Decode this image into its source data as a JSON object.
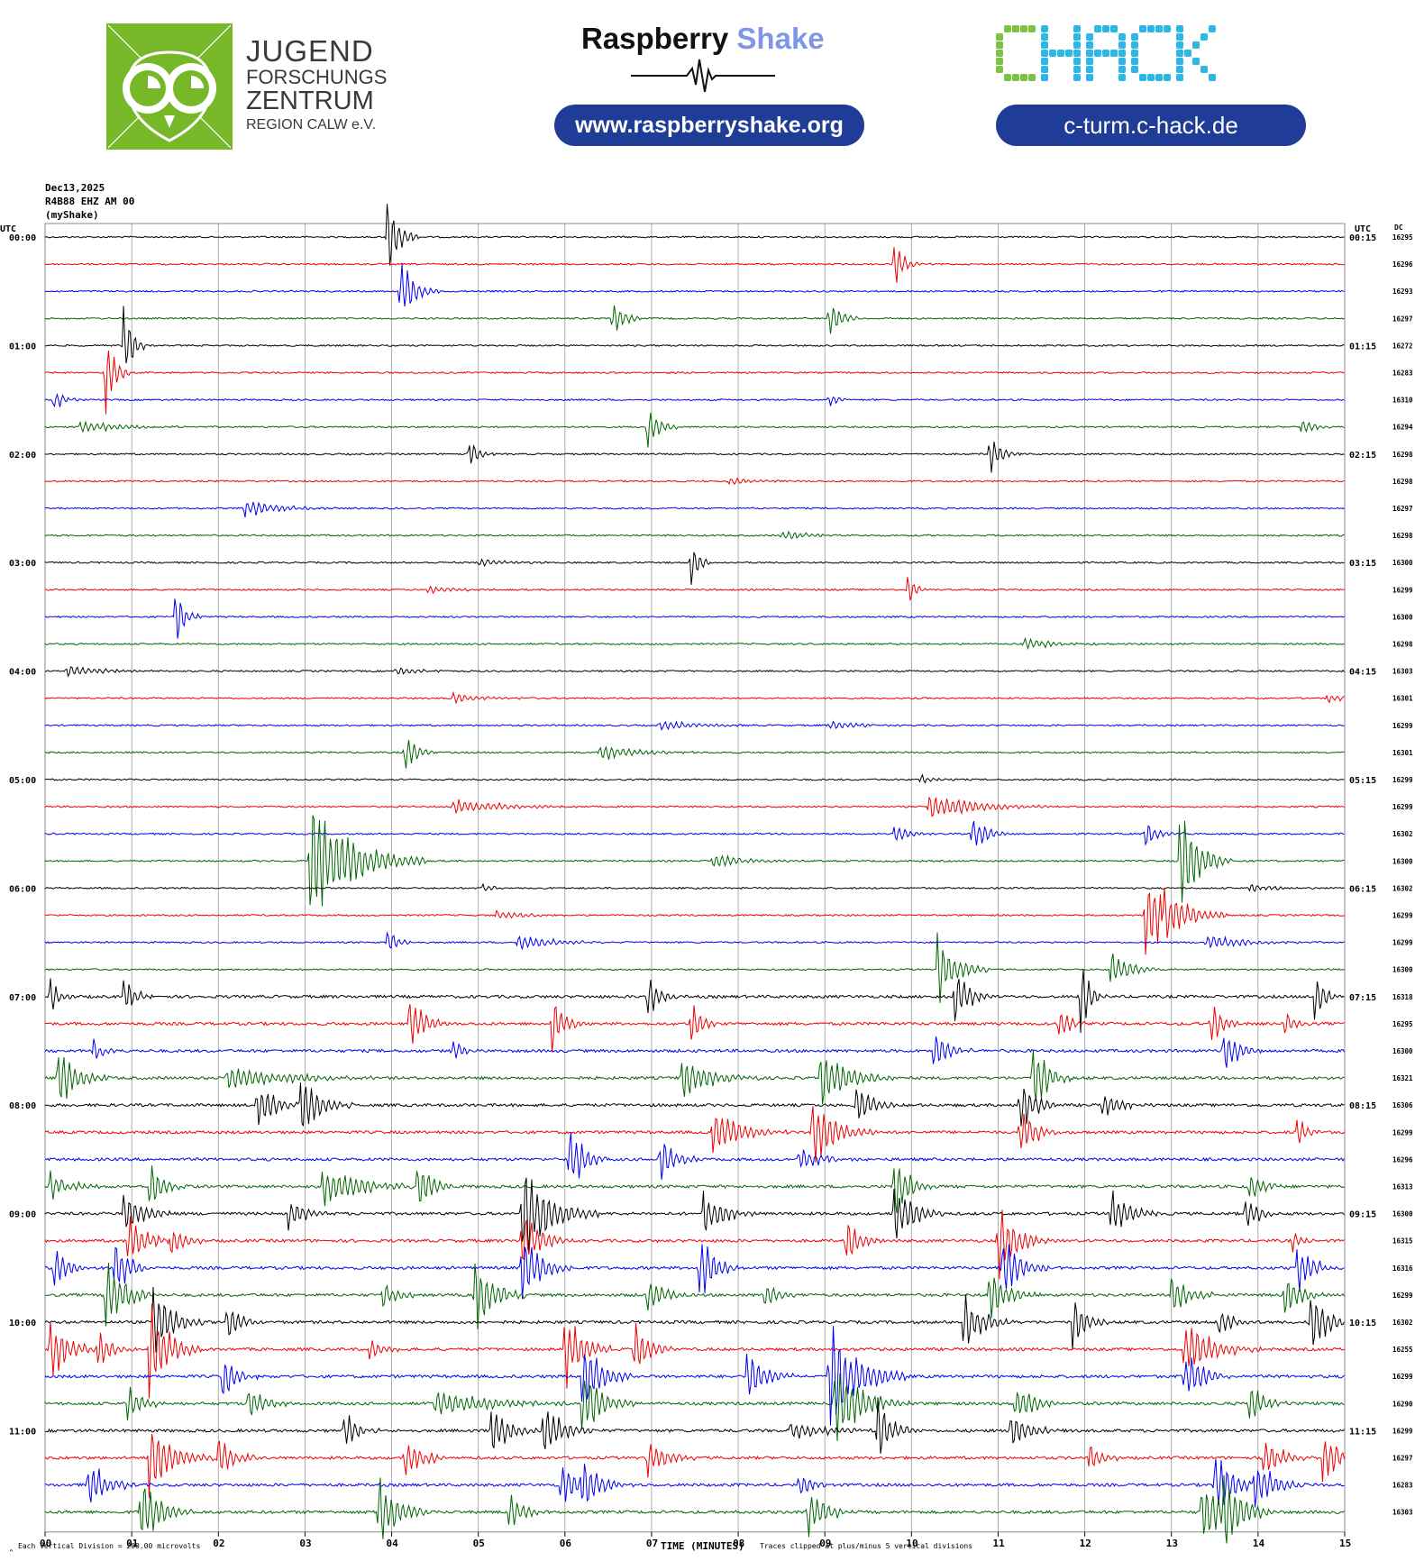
{
  "banner": {
    "jfz_lines": [
      "JUGEND",
      "FORSCHUNGS",
      "ZENTRUM",
      "REGION CALW e.V."
    ],
    "rs_title_a": "Raspberry",
    "rs_title_b": "Shake",
    "rs_url": "www.raspberryshake.org",
    "chack_logo": "CHACK",
    "chack_url": "c-turm.c-hack.de",
    "colors": {
      "jfz_green": "#77b82a",
      "pill_blue": "#1f3c96",
      "shake_blue": "#7f95e6",
      "chack_green": "#7dc242",
      "chack_blue": "#2bb8e6"
    }
  },
  "header": {
    "date": "Dec13,2025",
    "station": "R4B88 EHZ AM 00",
    "source": "(myShake)",
    "utc_left": "UTC",
    "utc_right": "UTC",
    "dc_label": "DC"
  },
  "footer": {
    "division_note": "Each Vertical Division =  200.00 microvolts",
    "xlabel": "TIME (MINUTES)",
    "clip_note": "Traces clipped at plus/minus 5 vertical divisions",
    "corner_mark": "^"
  },
  "chart_data": {
    "type": "line",
    "title": "",
    "xlabel": "TIME (MINUTES)",
    "xlim": [
      0,
      15
    ],
    "x_ticks": [
      "00",
      "01",
      "02",
      "03",
      "04",
      "05",
      "06",
      "07",
      "08",
      "09",
      "10",
      "11",
      "12",
      "13",
      "14",
      "15"
    ],
    "grid": true,
    "trace_colors": [
      "#000000",
      "#ee0000",
      "#0000ee",
      "#006600"
    ],
    "left_hour_labels": [
      "00:00",
      "01:00",
      "02:00",
      "03:00",
      "04:00",
      "05:00",
      "06:00",
      "07:00",
      "08:00",
      "09:00",
      "10:00",
      "11:00"
    ],
    "right_hour_labels": [
      "00:15",
      "01:15",
      "02:15",
      "03:15",
      "04:15",
      "05:15",
      "06:15",
      "07:15",
      "08:15",
      "09:15",
      "10:15",
      "11:15"
    ],
    "dc_offsets": [
      "16295",
      "16296",
      "16293",
      "16297",
      "16272",
      "16283",
      "16310",
      "16294",
      "16298",
      "16298",
      "16297",
      "16298",
      "16300",
      "16299",
      "16300",
      "16298",
      "16303",
      "16301",
      "16299",
      "16301",
      "16299",
      "16299",
      "16302",
      "16300",
      "16302",
      "16299",
      "16299",
      "16300",
      "16318",
      "16295",
      "16300",
      "16321",
      "16306",
      "16299",
      "16296",
      "16313",
      "16300",
      "16315",
      "16316",
      "16299",
      "16302",
      "16255",
      "16299",
      "16290",
      "16299",
      "16297",
      "16283",
      "16303"
    ],
    "events": [
      {
        "row": 0,
        "t": 3.95,
        "amp": 1.8,
        "dur": 0.12
      },
      {
        "row": 1,
        "t": 9.8,
        "amp": 1.0,
        "dur": 0.1
      },
      {
        "row": 2,
        "t": 4.1,
        "amp": 1.4,
        "dur": 0.15
      },
      {
        "row": 3,
        "t": 6.55,
        "amp": 0.7,
        "dur": 0.12
      },
      {
        "row": 3,
        "t": 9.05,
        "amp": 0.8,
        "dur": 0.12
      },
      {
        "row": 4,
        "t": 0.9,
        "amp": 1.6,
        "dur": 0.1
      },
      {
        "row": 5,
        "t": 0.7,
        "amp": 1.6,
        "dur": 0.1
      },
      {
        "row": 6,
        "t": 0.1,
        "amp": 0.5,
        "dur": 0.1
      },
      {
        "row": 6,
        "t": 9.05,
        "amp": 0.3,
        "dur": 0.1
      },
      {
        "row": 7,
        "t": 0.4,
        "amp": 0.25,
        "dur": 0.4
      },
      {
        "row": 7,
        "t": 6.95,
        "amp": 1.0,
        "dur": 0.12
      },
      {
        "row": 7,
        "t": 14.5,
        "amp": 0.3,
        "dur": 0.15
      },
      {
        "row": 8,
        "t": 4.9,
        "amp": 0.6,
        "dur": 0.1
      },
      {
        "row": 8,
        "t": 10.9,
        "amp": 0.8,
        "dur": 0.12
      },
      {
        "row": 9,
        "t": 7.9,
        "amp": 0.2,
        "dur": 0.2
      },
      {
        "row": 10,
        "t": 2.3,
        "amp": 0.35,
        "dur": 0.35
      },
      {
        "row": 11,
        "t": 8.5,
        "amp": 0.2,
        "dur": 0.3
      },
      {
        "row": 12,
        "t": 7.45,
        "amp": 1.3,
        "dur": 0.08
      },
      {
        "row": 12,
        "t": 5.0,
        "amp": 0.15,
        "dur": 0.3
      },
      {
        "row": 13,
        "t": 9.95,
        "amp": 0.6,
        "dur": 0.1
      },
      {
        "row": 13,
        "t": 4.4,
        "amp": 0.15,
        "dur": 0.3
      },
      {
        "row": 14,
        "t": 1.5,
        "amp": 1.2,
        "dur": 0.1
      },
      {
        "row": 15,
        "t": 11.3,
        "amp": 0.25,
        "dur": 0.3
      },
      {
        "row": 16,
        "t": 0.25,
        "amp": 0.25,
        "dur": 0.35
      },
      {
        "row": 16,
        "t": 4.05,
        "amp": 0.2,
        "dur": 0.2
      },
      {
        "row": 17,
        "t": 4.7,
        "amp": 0.2,
        "dur": 0.3
      },
      {
        "row": 17,
        "t": 14.8,
        "amp": 0.2,
        "dur": 0.3
      },
      {
        "row": 18,
        "t": 7.1,
        "amp": 0.2,
        "dur": 0.35
      },
      {
        "row": 18,
        "t": 9.05,
        "amp": 0.2,
        "dur": 0.25
      },
      {
        "row": 19,
        "t": 4.15,
        "amp": 0.9,
        "dur": 0.12
      },
      {
        "row": 19,
        "t": 6.4,
        "amp": 0.3,
        "dur": 0.4
      },
      {
        "row": 20,
        "t": 10.1,
        "amp": 0.2,
        "dur": 0.15
      },
      {
        "row": 21,
        "t": 4.7,
        "amp": 0.3,
        "dur": 0.5
      },
      {
        "row": 21,
        "t": 10.2,
        "amp": 0.5,
        "dur": 0.5
      },
      {
        "row": 22,
        "t": 10.7,
        "amp": 0.8,
        "dur": 0.15
      },
      {
        "row": 22,
        "t": 12.7,
        "amp": 0.5,
        "dur": 0.15
      },
      {
        "row": 22,
        "t": 9.8,
        "amp": 0.4,
        "dur": 0.15
      },
      {
        "row": 23,
        "t": 3.05,
        "amp": 2.5,
        "dur": 0.45
      },
      {
        "row": 23,
        "t": 13.1,
        "amp": 2.2,
        "dur": 0.2
      },
      {
        "row": 23,
        "t": 7.7,
        "amp": 0.3,
        "dur": 0.35
      },
      {
        "row": 24,
        "t": 13.9,
        "amp": 0.15,
        "dur": 0.3
      },
      {
        "row": 24,
        "t": 5.05,
        "amp": 0.2,
        "dur": 0.15
      },
      {
        "row": 25,
        "t": 12.7,
        "amp": 1.8,
        "dur": 0.25
      },
      {
        "row": 25,
        "t": 12.9,
        "amp": 1.6,
        "dur": 0.25
      },
      {
        "row": 25,
        "t": 5.2,
        "amp": 0.2,
        "dur": 0.3
      },
      {
        "row": 26,
        "t": 3.95,
        "amp": 0.6,
        "dur": 0.1
      },
      {
        "row": 26,
        "t": 5.45,
        "amp": 0.3,
        "dur": 0.4
      },
      {
        "row": 26,
        "t": 13.4,
        "amp": 0.3,
        "dur": 0.4
      },
      {
        "row": 27,
        "t": 10.3,
        "amp": 1.4,
        "dur": 0.2
      },
      {
        "row": 27,
        "t": 12.3,
        "amp": 0.7,
        "dur": 0.2
      },
      {
        "row": 28,
        "t": 0.05,
        "amp": 0.8,
        "dur": 0.1
      },
      {
        "row": 28,
        "t": 0.9,
        "amp": 0.9,
        "dur": 0.12
      },
      {
        "row": 28,
        "t": 6.95,
        "amp": 0.9,
        "dur": 0.12
      },
      {
        "row": 28,
        "t": 10.5,
        "amp": 1.2,
        "dur": 0.15
      },
      {
        "row": 28,
        "t": 11.95,
        "amp": 1.5,
        "dur": 0.1
      },
      {
        "row": 28,
        "t": 14.65,
        "amp": 1.0,
        "dur": 0.1
      },
      {
        "row": 29,
        "t": 4.2,
        "amp": 1.2,
        "dur": 0.15
      },
      {
        "row": 29,
        "t": 5.85,
        "amp": 1.2,
        "dur": 0.12
      },
      {
        "row": 29,
        "t": 7.45,
        "amp": 1.0,
        "dur": 0.12
      },
      {
        "row": 29,
        "t": 11.7,
        "amp": 0.8,
        "dur": 0.12
      },
      {
        "row": 29,
        "t": 13.45,
        "amp": 1.0,
        "dur": 0.12
      },
      {
        "row": 29,
        "t": 14.3,
        "amp": 0.6,
        "dur": 0.1
      },
      {
        "row": 30,
        "t": 0.55,
        "amp": 0.5,
        "dur": 0.1
      },
      {
        "row": 30,
        "t": 4.7,
        "amp": 0.6,
        "dur": 0.1
      },
      {
        "row": 30,
        "t": 10.25,
        "amp": 0.9,
        "dur": 0.15
      },
      {
        "row": 30,
        "t": 13.6,
        "amp": 1.0,
        "dur": 0.15
      },
      {
        "row": 31,
        "t": 0.15,
        "amp": 1.2,
        "dur": 0.2
      },
      {
        "row": 31,
        "t": 2.1,
        "amp": 0.5,
        "dur": 0.6
      },
      {
        "row": 31,
        "t": 7.35,
        "amp": 0.9,
        "dur": 0.3
      },
      {
        "row": 31,
        "t": 8.95,
        "amp": 1.2,
        "dur": 0.3
      },
      {
        "row": 31,
        "t": 11.4,
        "amp": 1.5,
        "dur": 0.15
      },
      {
        "row": 32,
        "t": 2.45,
        "amp": 1.0,
        "dur": 0.2
      },
      {
        "row": 32,
        "t": 2.95,
        "amp": 1.2,
        "dur": 0.2
      },
      {
        "row": 32,
        "t": 9.35,
        "amp": 1.1,
        "dur": 0.15
      },
      {
        "row": 32,
        "t": 11.25,
        "amp": 1.3,
        "dur": 0.15
      },
      {
        "row": 32,
        "t": 12.2,
        "amp": 0.5,
        "dur": 0.2
      },
      {
        "row": 33,
        "t": 7.7,
        "amp": 0.9,
        "dur": 0.3
      },
      {
        "row": 33,
        "t": 8.85,
        "amp": 1.5,
        "dur": 0.25
      },
      {
        "row": 33,
        "t": 11.25,
        "amp": 1.2,
        "dur": 0.15
      },
      {
        "row": 33,
        "t": 14.45,
        "amp": 0.6,
        "dur": 0.1
      },
      {
        "row": 34,
        "t": 6.05,
        "amp": 1.4,
        "dur": 0.15
      },
      {
        "row": 34,
        "t": 7.1,
        "amp": 1.0,
        "dur": 0.15
      },
      {
        "row": 34,
        "t": 8.7,
        "amp": 0.5,
        "dur": 0.25
      },
      {
        "row": 35,
        "t": 0.05,
        "amp": 0.6,
        "dur": 0.2
      },
      {
        "row": 35,
        "t": 1.2,
        "amp": 1.0,
        "dur": 0.15
      },
      {
        "row": 35,
        "t": 3.2,
        "amp": 0.8,
        "dur": 0.4
      },
      {
        "row": 35,
        "t": 4.3,
        "amp": 1.2,
        "dur": 0.15
      },
      {
        "row": 35,
        "t": 9.8,
        "amp": 1.5,
        "dur": 0.15
      },
      {
        "row": 35,
        "t": 13.9,
        "amp": 0.6,
        "dur": 0.15
      },
      {
        "row": 36,
        "t": 0.9,
        "amp": 1.0,
        "dur": 0.2
      },
      {
        "row": 36,
        "t": 2.8,
        "amp": 0.8,
        "dur": 0.15
      },
      {
        "row": 36,
        "t": 5.5,
        "amp": 2.0,
        "dur": 0.3
      },
      {
        "row": 36,
        "t": 7.6,
        "amp": 1.0,
        "dur": 0.2
      },
      {
        "row": 36,
        "t": 9.8,
        "amp": 1.2,
        "dur": 0.2
      },
      {
        "row": 36,
        "t": 12.3,
        "amp": 1.0,
        "dur": 0.2
      },
      {
        "row": 36,
        "t": 13.85,
        "amp": 0.8,
        "dur": 0.15
      },
      {
        "row": 37,
        "t": 0.95,
        "amp": 1.0,
        "dur": 0.2
      },
      {
        "row": 37,
        "t": 1.45,
        "amp": 0.8,
        "dur": 0.15
      },
      {
        "row": 37,
        "t": 5.5,
        "amp": 1.2,
        "dur": 0.2
      },
      {
        "row": 37,
        "t": 9.25,
        "amp": 0.9,
        "dur": 0.15
      },
      {
        "row": 37,
        "t": 11.0,
        "amp": 1.5,
        "dur": 0.2
      },
      {
        "row": 37,
        "t": 14.4,
        "amp": 0.4,
        "dur": 0.1
      },
      {
        "row": 38,
        "t": 0.1,
        "amp": 0.8,
        "dur": 0.15
      },
      {
        "row": 38,
        "t": 0.8,
        "amp": 1.2,
        "dur": 0.15
      },
      {
        "row": 38,
        "t": 5.5,
        "amp": 1.5,
        "dur": 0.2
      },
      {
        "row": 38,
        "t": 7.55,
        "amp": 1.5,
        "dur": 0.15
      },
      {
        "row": 38,
        "t": 11.05,
        "amp": 1.2,
        "dur": 0.2
      },
      {
        "row": 38,
        "t": 14.45,
        "amp": 1.2,
        "dur": 0.15
      },
      {
        "row": 39,
        "t": 0.7,
        "amp": 1.5,
        "dur": 0.2
      },
      {
        "row": 39,
        "t": 3.9,
        "amp": 0.6,
        "dur": 0.15
      },
      {
        "row": 39,
        "t": 4.95,
        "amp": 1.6,
        "dur": 0.2
      },
      {
        "row": 39,
        "t": 6.95,
        "amp": 0.9,
        "dur": 0.15
      },
      {
        "row": 39,
        "t": 8.3,
        "amp": 0.6,
        "dur": 0.15
      },
      {
        "row": 39,
        "t": 10.9,
        "amp": 1.0,
        "dur": 0.2
      },
      {
        "row": 39,
        "t": 13.0,
        "amp": 0.8,
        "dur": 0.2
      },
      {
        "row": 39,
        "t": 14.3,
        "amp": 1.0,
        "dur": 0.15
      },
      {
        "row": 40,
        "t": 1.25,
        "amp": 1.5,
        "dur": 0.2
      },
      {
        "row": 40,
        "t": 2.1,
        "amp": 0.8,
        "dur": 0.15
      },
      {
        "row": 40,
        "t": 10.6,
        "amp": 1.2,
        "dur": 0.2
      },
      {
        "row": 40,
        "t": 11.85,
        "amp": 1.0,
        "dur": 0.15
      },
      {
        "row": 40,
        "t": 13.55,
        "amp": 0.6,
        "dur": 0.15
      },
      {
        "row": 40,
        "t": 14.6,
        "amp": 1.2,
        "dur": 0.2
      },
      {
        "row": 41,
        "t": 0.05,
        "amp": 1.4,
        "dur": 0.2
      },
      {
        "row": 41,
        "t": 0.6,
        "amp": 0.9,
        "dur": 0.15
      },
      {
        "row": 41,
        "t": 1.2,
        "amp": 2.0,
        "dur": 0.2
      },
      {
        "row": 41,
        "t": 3.75,
        "amp": 0.5,
        "dur": 0.15
      },
      {
        "row": 41,
        "t": 6.0,
        "amp": 1.5,
        "dur": 0.2
      },
      {
        "row": 41,
        "t": 6.8,
        "amp": 1.2,
        "dur": 0.15
      },
      {
        "row": 41,
        "t": 13.15,
        "amp": 1.2,
        "dur": 0.3
      },
      {
        "row": 42,
        "t": 2.05,
        "amp": 1.0,
        "dur": 0.15
      },
      {
        "row": 42,
        "t": 6.2,
        "amp": 1.5,
        "dur": 0.2
      },
      {
        "row": 42,
        "t": 8.1,
        "amp": 1.0,
        "dur": 0.2
      },
      {
        "row": 42,
        "t": 9.05,
        "amp": 2.2,
        "dur": 0.3
      },
      {
        "row": 42,
        "t": 13.15,
        "amp": 1.0,
        "dur": 0.2
      },
      {
        "row": 43,
        "t": 0.95,
        "amp": 0.8,
        "dur": 0.15
      },
      {
        "row": 43,
        "t": 2.35,
        "amp": 0.8,
        "dur": 0.15
      },
      {
        "row": 43,
        "t": 4.5,
        "amp": 0.5,
        "dur": 0.6
      },
      {
        "row": 43,
        "t": 6.2,
        "amp": 1.5,
        "dur": 0.2
      },
      {
        "row": 43,
        "t": 9.1,
        "amp": 1.5,
        "dur": 0.3
      },
      {
        "row": 43,
        "t": 11.2,
        "amp": 0.8,
        "dur": 0.2
      },
      {
        "row": 43,
        "t": 13.9,
        "amp": 0.8,
        "dur": 0.15
      },
      {
        "row": 44,
        "t": 3.45,
        "amp": 0.8,
        "dur": 0.15
      },
      {
        "row": 44,
        "t": 5.15,
        "amp": 1.0,
        "dur": 0.2
      },
      {
        "row": 44,
        "t": 5.75,
        "amp": 1.2,
        "dur": 0.2
      },
      {
        "row": 44,
        "t": 8.6,
        "amp": 0.3,
        "dur": 0.5
      },
      {
        "row": 44,
        "t": 9.6,
        "amp": 1.5,
        "dur": 0.15
      },
      {
        "row": 44,
        "t": 11.15,
        "amp": 0.8,
        "dur": 0.2
      },
      {
        "row": 45,
        "t": 1.2,
        "amp": 1.5,
        "dur": 0.25
      },
      {
        "row": 45,
        "t": 2.0,
        "amp": 0.9,
        "dur": 0.15
      },
      {
        "row": 45,
        "t": 4.15,
        "amp": 0.8,
        "dur": 0.2
      },
      {
        "row": 45,
        "t": 6.95,
        "amp": 0.8,
        "dur": 0.2
      },
      {
        "row": 45,
        "t": 12.05,
        "amp": 0.6,
        "dur": 0.15
      },
      {
        "row": 45,
        "t": 14.05,
        "amp": 0.9,
        "dur": 0.2
      },
      {
        "row": 45,
        "t": 14.75,
        "amp": 1.2,
        "dur": 0.15
      },
      {
        "row": 46,
        "t": 0.5,
        "amp": 1.0,
        "dur": 0.2
      },
      {
        "row": 46,
        "t": 5.95,
        "amp": 0.8,
        "dur": 0.2
      },
      {
        "row": 46,
        "t": 6.2,
        "amp": 1.0,
        "dur": 0.2
      },
      {
        "row": 46,
        "t": 8.7,
        "amp": 0.5,
        "dur": 0.15
      },
      {
        "row": 46,
        "t": 13.5,
        "amp": 1.4,
        "dur": 0.2
      },
      {
        "row": 46,
        "t": 13.95,
        "amp": 1.2,
        "dur": 0.2
      },
      {
        "row": 47,
        "t": 1.1,
        "amp": 1.5,
        "dur": 0.2
      },
      {
        "row": 47,
        "t": 3.85,
        "amp": 1.5,
        "dur": 0.2
      },
      {
        "row": 47,
        "t": 5.35,
        "amp": 0.8,
        "dur": 0.15
      },
      {
        "row": 47,
        "t": 8.8,
        "amp": 1.0,
        "dur": 0.2
      },
      {
        "row": 47,
        "t": 13.35,
        "amp": 1.6,
        "dur": 0.2
      },
      {
        "row": 47,
        "t": 13.6,
        "amp": 1.5,
        "dur": 0.2
      }
    ]
  }
}
